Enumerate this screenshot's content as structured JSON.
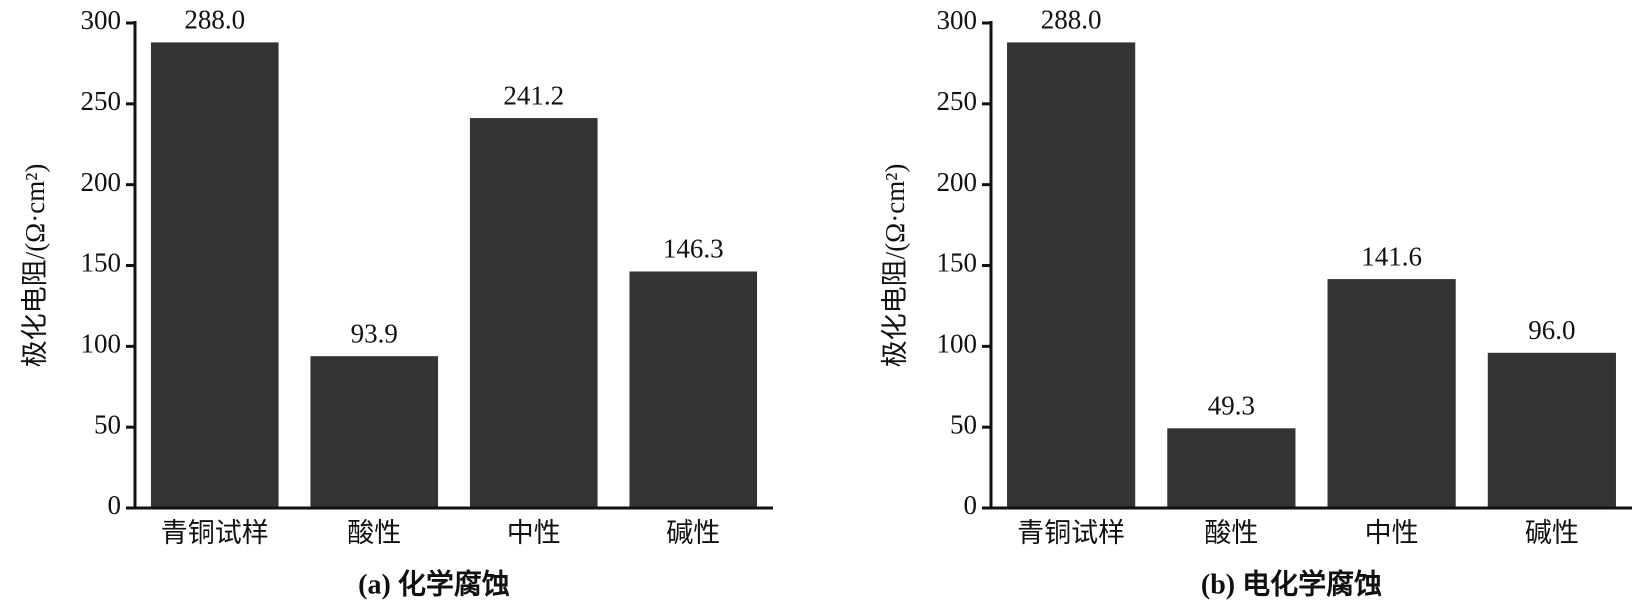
{
  "chart_data": [
    {
      "type": "bar",
      "caption": "(a) 化学腐蚀",
      "y_label": "极化电阻/(Ω·cm²)",
      "categories": [
        "青铜试样",
        "酸性",
        "中性",
        "碱性"
      ],
      "values": [
        288.0,
        93.9,
        241.2,
        146.3
      ],
      "value_labels": [
        "288.0",
        "93.9",
        "241.2",
        "146.3"
      ],
      "color": "#333333",
      "ylim": [
        0,
        300
      ],
      "yticks": [
        0,
        50,
        100,
        150,
        200,
        250,
        300
      ]
    },
    {
      "type": "bar",
      "caption": "(b) 电化学腐蚀",
      "y_label": "极化电阻/(Ω·cm²)",
      "categories": [
        "青铜试样",
        "酸性",
        "中性",
        "碱性"
      ],
      "values": [
        288.0,
        49.3,
        141.6,
        96.0
      ],
      "value_labels": [
        "288.0",
        "49.3",
        "141.6",
        "96.0"
      ],
      "color": "#333333",
      "ylim": [
        0,
        300
      ],
      "yticks": [
        0,
        50,
        100,
        150,
        200,
        250,
        300
      ]
    }
  ]
}
